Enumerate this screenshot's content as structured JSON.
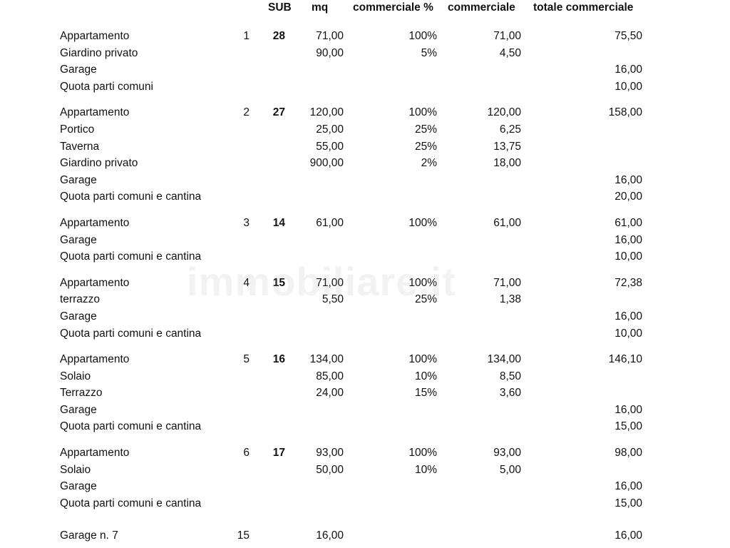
{
  "header": {
    "sub": "SUB",
    "mq": "mq",
    "pct": "commerciale %",
    "comm": "commerciale",
    "tot": "totale commerciale"
  },
  "watermark": "immobiliare.it",
  "groups": [
    {
      "rows": [
        {
          "label": "Appartamento",
          "num": "1",
          "sub": "28",
          "mq": "71,00",
          "pct": "100%",
          "comm": "71,00",
          "tot": "75,50"
        },
        {
          "label": "Giardino privato",
          "mq": "90,00",
          "pct": "5%",
          "comm": "4,50"
        },
        {
          "label": "Garage",
          "tot": "16,00"
        },
        {
          "label": "Quota parti comuni",
          "tot": "10,00"
        }
      ]
    },
    {
      "rows": [
        {
          "label": "Appartamento",
          "num": "2",
          "sub": "27",
          "mq": "120,00",
          "pct": "100%",
          "comm": "120,00",
          "tot": "158,00"
        },
        {
          "label": "Portico",
          "mq": "25,00",
          "pct": "25%",
          "comm": "6,25"
        },
        {
          "label": "Taverna",
          "mq": "55,00",
          "pct": "25%",
          "comm": "13,75"
        },
        {
          "label": "Giardino privato",
          "mq": "900,00",
          "pct": "2%",
          "comm": "18,00"
        },
        {
          "label": "Garage",
          "tot": "16,00"
        },
        {
          "label": "Quota parti comuni e cantina",
          "tot": "20,00"
        }
      ]
    },
    {
      "rows": [
        {
          "label": "Appartamento",
          "num": "3",
          "sub": "14",
          "mq": "61,00",
          "pct": "100%",
          "comm": "61,00",
          "tot": "61,00"
        },
        {
          "label": "Garage",
          "tot": "16,00"
        },
        {
          "label": "Quota parti comuni e cantina",
          "tot": "10,00"
        }
      ]
    },
    {
      "rows": [
        {
          "label": "Appartamento",
          "num": "4",
          "sub": "15",
          "mq": "71,00",
          "pct": "100%",
          "comm": "71,00",
          "tot": "72,38"
        },
        {
          "label": "terrazzo",
          "mq": "5,50",
          "pct": "25%",
          "comm": "1,38"
        },
        {
          "label": "Garage",
          "tot": "16,00"
        },
        {
          "label": "Quota parti comuni e cantina",
          "tot": "10,00"
        }
      ]
    },
    {
      "rows": [
        {
          "label": "Appartamento",
          "num": "5",
          "sub": "16",
          "mq": "134,00",
          "pct": "100%",
          "comm": "134,00",
          "tot": "146,10"
        },
        {
          "label": "Solaio",
          "mq": "85,00",
          "pct": "10%",
          "comm": "8,50"
        },
        {
          "label": "Terrazzo",
          "mq": "24,00",
          "pct": "15%",
          "comm": "3,60"
        },
        {
          "label": "Garage",
          "tot": "16,00"
        },
        {
          "label": "Quota parti comuni e cantina",
          "tot": "15,00"
        }
      ]
    },
    {
      "rows": [
        {
          "label": "Appartamento",
          "num": "6",
          "sub": "17",
          "mq": "93,00",
          "pct": "100%",
          "comm": "93,00",
          "tot": "98,00"
        },
        {
          "label": "Solaio",
          "mq": "50,00",
          "pct": "10%",
          "comm": "5,00"
        },
        {
          "label": "Garage",
          "tot": "16,00"
        },
        {
          "label": "Quota parti comuni e cantina",
          "tot": "15,00"
        }
      ]
    },
    {
      "rows": [
        {
          "label": "Garage n. 7",
          "num": "15",
          "mq": "16,00",
          "tot": "16,00"
        }
      ]
    }
  ]
}
